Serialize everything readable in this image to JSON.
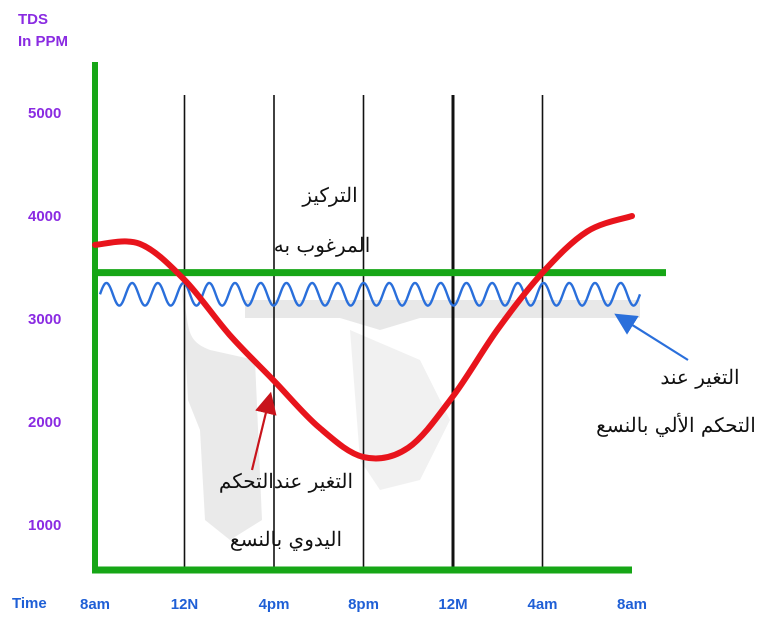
{
  "chart_data": {
    "type": "line",
    "ylabel_line1": "TDS",
    "ylabel_line2": "In PPM",
    "xlabel": "Time",
    "x_ticks": [
      "8am",
      "12N",
      "4pm",
      "8pm",
      "12M",
      "4am",
      "8am"
    ],
    "y_ticks": [
      1000,
      2000,
      3000,
      4000,
      5000
    ],
    "ylim": [
      500,
      5400
    ],
    "grid": "vertical",
    "setpoint": 3450,
    "series": [
      {
        "key": "manual",
        "color": "#e8141c",
        "x": [
          0,
          0.5,
          1,
          1.5,
          2,
          2.5,
          3,
          3.5,
          4,
          4.5,
          5,
          5.5,
          6
        ],
        "y": [
          3720,
          3730,
          3380,
          2850,
          2400,
          1950,
          1660,
          1750,
          2250,
          2900,
          3450,
          3850,
          4000
        ]
      },
      {
        "key": "auto",
        "color": "#2a6fdb",
        "band_low": 3130,
        "band_high": 3350,
        "cycles": 21,
        "x_range": [
          0,
          6
        ]
      },
      {
        "key": "setpoint_line",
        "color": "#16a616",
        "y": 3450
      }
    ],
    "annotations": {
      "desired_line1": "التركيز",
      "desired_line2": "المرغوب به",
      "auto_line1": "التغير عند",
      "auto_line2": "التحكم الألي بالنسع",
      "manual_line1": "التغير عندالتحكم",
      "manual_line2": "اليدوي بالنسع"
    },
    "colors": {
      "axis": "#16a616",
      "vline": "#111111",
      "shadow": "#d8d8d8",
      "ytick_text": "#8a2be2",
      "xtick_text": "#1f5fd6",
      "arrow_red": "#c8141c",
      "arrow_blue": "#2a6fdb"
    }
  }
}
